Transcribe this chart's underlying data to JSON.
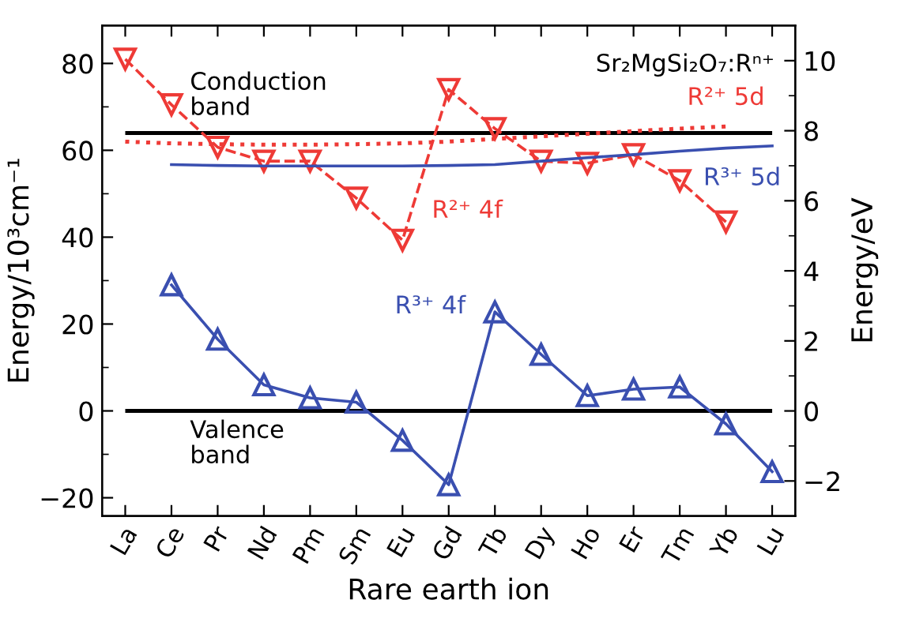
{
  "chart_data": {
    "type": "line",
    "xlabel": "Rare earth ion",
    "ylabel": "Energy/10³cm⁻¹",
    "y2label": "Energy/eV",
    "categories": [
      "La",
      "Ce",
      "Pr",
      "Nd",
      "Pm",
      "Sm",
      "Eu",
      "Gd",
      "Tb",
      "Dy",
      "Ho",
      "Er",
      "Tm",
      "Yb",
      "Lu"
    ],
    "series": [
      {
        "name": "R²⁺ 4f",
        "color": "#ee3a36",
        "marker": "triangle_down",
        "line_style": "dashed",
        "values": [
          81,
          70.5,
          60.7,
          57.5,
          57.5,
          49,
          39.3,
          74,
          65,
          57.5,
          57,
          59,
          53,
          43.5,
          null
        ]
      },
      {
        "name": "R²⁺ 5d",
        "color": "#ee3a36",
        "marker": "none",
        "line_style": "dotted",
        "values": [
          62,
          61.6,
          61.4,
          61.3,
          61.3,
          61.4,
          61.6,
          62,
          62.6,
          63.2,
          63.8,
          64.4,
          65,
          65.5,
          null
        ]
      },
      {
        "name": "R³⁺ 5d",
        "color": "#3a4fb0",
        "marker": "none",
        "line_style": "solid",
        "values": [
          null,
          56.7,
          56.5,
          56.4,
          56.4,
          56.4,
          56.4,
          56.5,
          56.7,
          57.5,
          58.3,
          59,
          59.8,
          60.5,
          61
        ]
      },
      {
        "name": "R³⁺ 4f",
        "color": "#3a4fb0",
        "marker": "triangle",
        "line_style": "solid",
        "values": [
          null,
          29,
          16.5,
          6,
          3,
          2,
          -6.8,
          -17,
          22.8,
          13,
          3.5,
          5,
          5.5,
          -3,
          -14
        ]
      }
    ],
    "ylim": [
      -24.2,
      88.7
    ],
    "yticks": [
      -20,
      {
        "value": -10,
        "label": null
      },
      0,
      {
        "value": 10,
        "label": null
      },
      20,
      {
        "value": 30,
        "label": null
      },
      40,
      {
        "value": 50,
        "label": null
      },
      60,
      {
        "value": 70,
        "label": null
      },
      80
    ],
    "y2lim": [
      -3.0,
      11.0
    ],
    "y2ticks": [
      -2,
      {
        "value": -1,
        "label": null
      },
      0,
      {
        "value": 1,
        "label": null
      },
      2,
      {
        "value": 3,
        "label": null
      },
      4,
      {
        "value": 5,
        "label": null
      },
      6,
      {
        "value": 7,
        "label": null
      },
      8,
      {
        "value": 9,
        "label": null
      },
      10
    ],
    "ref_lines": [
      {
        "axis": "y",
        "value": 64,
        "label": "Conduction band",
        "color": "#000000"
      },
      {
        "axis": "y",
        "value": 0,
        "label": "Valence band",
        "color": "#000000"
      }
    ],
    "annotations": [
      "Sr₂MgSi₂O₇:Rⁿ⁺"
    ],
    "grid": false,
    "legend": false
  }
}
